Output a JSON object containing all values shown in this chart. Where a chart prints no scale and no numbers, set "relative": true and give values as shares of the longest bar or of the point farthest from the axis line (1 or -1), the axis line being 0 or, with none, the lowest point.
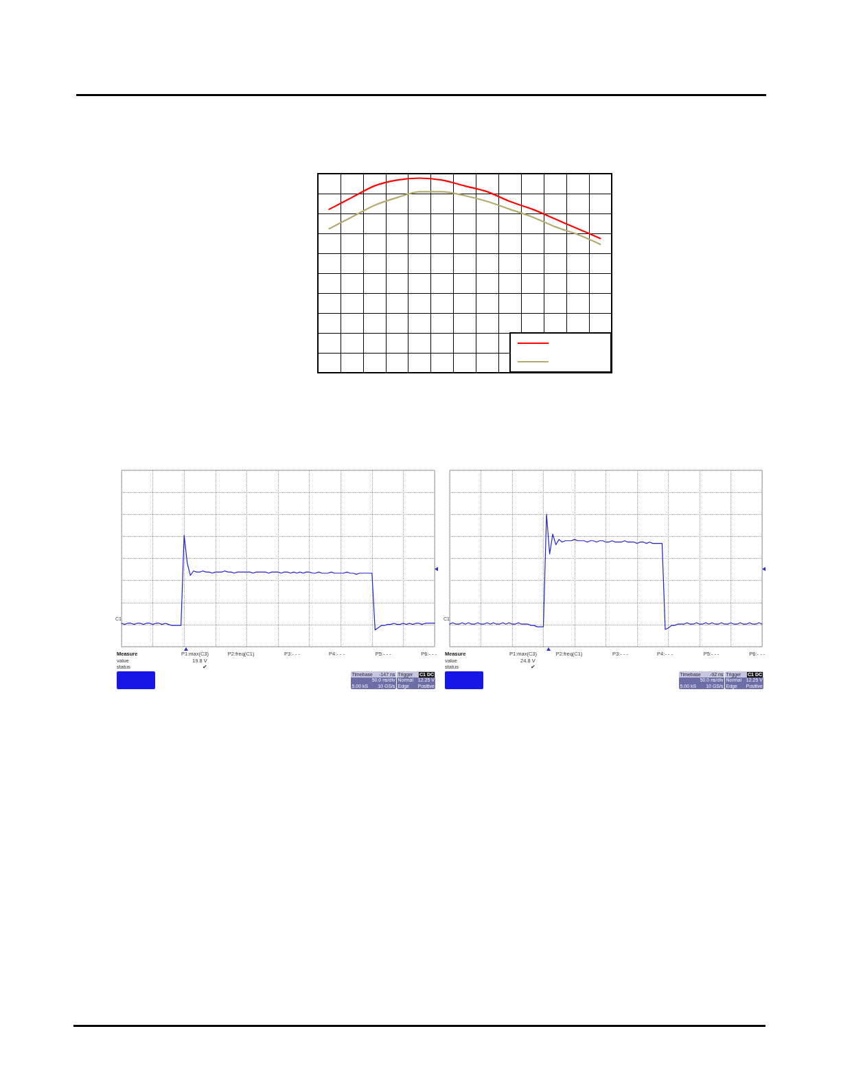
{
  "chart_data": [
    {
      "type": "line",
      "relative": true,
      "categories": [
        null,
        null,
        null,
        null,
        null,
        null,
        null,
        null,
        null,
        null,
        null,
        null,
        null
      ],
      "series": [
        {
          "color": "#ff0000",
          "values": [
            0.84,
            0.9,
            0.96,
            0.99,
            1,
            0.99,
            0.96,
            0.93,
            0.88,
            0.84,
            0.79,
            0.74,
            0.69
          ]
        },
        {
          "color": "#b3aa6c",
          "values": [
            0.74,
            0.8,
            0.86,
            0.9,
            0.93,
            0.93,
            0.91,
            0.88,
            0.84,
            0.8,
            0.75,
            0.71,
            0.66
          ]
        }
      ],
      "grid": true
    },
    {
      "type": "line",
      "relative": true,
      "categories": [
        null,
        null,
        null,
        null,
        null,
        null,
        null,
        null,
        null,
        null,
        null,
        null,
        null,
        null,
        null,
        null,
        null,
        null,
        null,
        null,
        null,
        null,
        null,
        null,
        null,
        null,
        null,
        null,
        null,
        null,
        null,
        null,
        null,
        null,
        null,
        null,
        null,
        null,
        null,
        null,
        null,
        null,
        null,
        null,
        null,
        null,
        null,
        null,
        null,
        null,
        null,
        null,
        null,
        null,
        null,
        null,
        null,
        null,
        null,
        null,
        null,
        null,
        null,
        null,
        null,
        null,
        null,
        null,
        null,
        null,
        null,
        null,
        null,
        null,
        null,
        null,
        null,
        null,
        null,
        null,
        null,
        null,
        null,
        null,
        null,
        null,
        null,
        null,
        null,
        null,
        null,
        null,
        null,
        null,
        null,
        null,
        null,
        null,
        null,
        null,
        null
      ],
      "series": [
        {
          "color": "#1e1ed2",
          "values": [
            0.21,
            0.2,
            0.21,
            0.21,
            0.2,
            0.21,
            0.21,
            0.2,
            0.21,
            0.21,
            0.2,
            0.21,
            0.21,
            0.2,
            0.21,
            0.2,
            0.19,
            0.19,
            0.19,
            0.19,
            1,
            0.75,
            0.64,
            0.68,
            0.67,
            0.67,
            0.68,
            0.67,
            0.67,
            0.66,
            0.67,
            0.67,
            0.67,
            0.68,
            0.67,
            0.67,
            0.66,
            0.67,
            0.67,
            0.67,
            0.67,
            0.67,
            0.66,
            0.67,
            0.67,
            0.67,
            0.67,
            0.66,
            0.67,
            0.67,
            0.67,
            0.66,
            0.67,
            0.67,
            0.66,
            0.67,
            0.66,
            0.67,
            0.66,
            0.67,
            0.67,
            0.66,
            0.66,
            0.67,
            0.66,
            0.66,
            0.66,
            0.67,
            0.66,
            0.66,
            0.66,
            0.66,
            0.67,
            0.66,
            0.66,
            0.65,
            0.66,
            0.66,
            0.66,
            0.66,
            0.66,
            0.15,
            0.17,
            0.19,
            0.19,
            0.2,
            0.2,
            0.21,
            0.2,
            0.2,
            0.21,
            0.2,
            0.21,
            0.2,
            0.21,
            0.21,
            0.2,
            0.21,
            0.21,
            0.21,
            0.21
          ]
        }
      ],
      "grid": true,
      "annotations": [
        "Measure",
        "value",
        "status",
        "P1:max(C3)",
        "19.8 V",
        "✔",
        "P2:freq(C1)",
        "P3:- - -",
        "P4:- - -",
        "P5:- - -",
        "P6:- - -",
        "Timebase",
        "-147 ns",
        "50.0 ns/div",
        "5.00 kS",
        "10 GS/s",
        "Trigger",
        "C1 DC",
        "Normal",
        "12.25 V",
        "Edge",
        "Positive",
        "C1"
      ]
    },
    {
      "type": "line",
      "relative": true,
      "categories": [
        null,
        null,
        null,
        null,
        null,
        null,
        null,
        null,
        null,
        null,
        null,
        null,
        null,
        null,
        null,
        null,
        null,
        null,
        null,
        null,
        null,
        null,
        null,
        null,
        null,
        null,
        null,
        null,
        null,
        null,
        null,
        null,
        null,
        null,
        null,
        null,
        null,
        null,
        null,
        null,
        null,
        null,
        null,
        null,
        null,
        null,
        null,
        null,
        null,
        null,
        null,
        null,
        null,
        null,
        null,
        null,
        null,
        null,
        null,
        null,
        null,
        null,
        null,
        null,
        null,
        null,
        null,
        null,
        null,
        null,
        null,
        null,
        null,
        null,
        null,
        null,
        null,
        null,
        null,
        null,
        null,
        null,
        null,
        null,
        null,
        null,
        null,
        null,
        null,
        null,
        null,
        null,
        null,
        null,
        null,
        null,
        null,
        null,
        null,
        null,
        null
      ],
      "series": [
        {
          "color": "#1e1ed2",
          "values": [
            0.17,
            0.18,
            0.17,
            0.17,
            0.18,
            0.17,
            0.18,
            0.17,
            0.17,
            0.18,
            0.17,
            0.17,
            0.18,
            0.17,
            0.18,
            0.17,
            0.17,
            0.18,
            0.17,
            0.18,
            0.17,
            0.17,
            0.18,
            0.17,
            0.17,
            0.17,
            0.16,
            0.16,
            0.15,
            0.15,
            0.15,
            1,
            0.7,
            0.85,
            0.77,
            0.81,
            0.79,
            0.8,
            0.8,
            0.8,
            0.81,
            0.8,
            0.8,
            0.8,
            0.79,
            0.8,
            0.8,
            0.79,
            0.8,
            0.8,
            0.79,
            0.79,
            0.8,
            0.79,
            0.79,
            0.79,
            0.8,
            0.79,
            0.79,
            0.79,
            0.78,
            0.79,
            0.79,
            0.78,
            0.79,
            0.78,
            0.78,
            0.78,
            0.78,
            0.13,
            0.14,
            0.16,
            0.16,
            0.17,
            0.17,
            0.17,
            0.18,
            0.17,
            0.17,
            0.18,
            0.17,
            0.17,
            0.18,
            0.17,
            0.18,
            0.17,
            0.17,
            0.18,
            0.17,
            0.17,
            0.18,
            0.17,
            0.17,
            0.18,
            0.17,
            0.17,
            0.18,
            0.17,
            0.17,
            0.18,
            0.17
          ]
        }
      ],
      "grid": true,
      "annotations": [
        "Measure",
        "value",
        "status",
        "P1:max(C3)",
        "24.8 V",
        "✔",
        "P2:freq(C1)",
        "P3:- - -",
        "P4:- - -",
        "P5:- - -",
        "P6:- - -",
        "Timebase",
        "-92 ns",
        "50.0 ns/div",
        "5.00 kS",
        "10 GS/s",
        "Trigger",
        "C1 DC",
        "Normal",
        "12.25 V",
        "Edge",
        "Positive",
        "C1"
      ]
    }
  ]
}
